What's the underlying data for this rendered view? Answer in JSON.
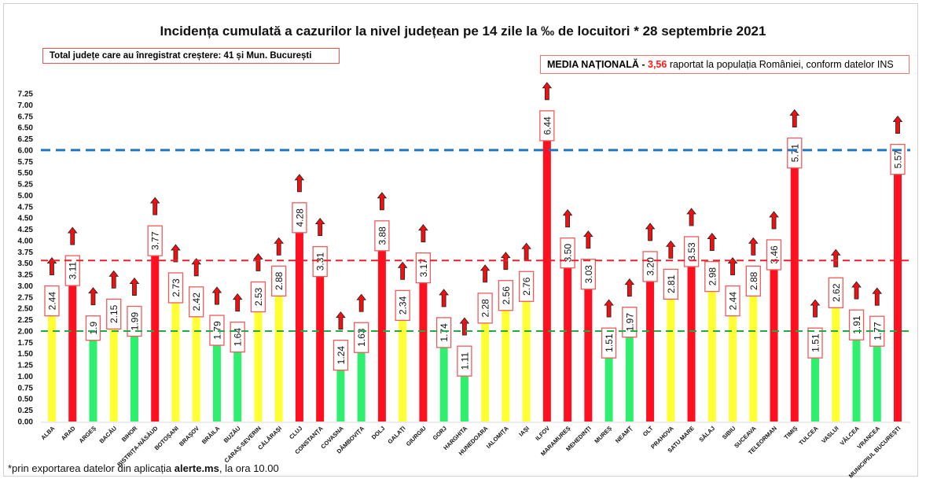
{
  "chart_data": {
    "type": "bar",
    "title": "Incidența cumulată a cazurilor la nivel județean pe 14 zile la ‰ de locuitori * 28 septembrie 2021",
    "categories": [
      "ALBA",
      "ARAD",
      "ARGEȘ",
      "BACĂU",
      "BIHOR",
      "BISTRIȚA-NĂSĂUD",
      "BOTOȘANI",
      "BRAȘOV",
      "BRĂILA",
      "BUZĂU",
      "CARAȘ-SEVERIN",
      "CĂLĂRAȘI",
      "CLUJ",
      "CONSTANȚA",
      "COVASNA",
      "DÂMBOVIȚA",
      "DOLJ",
      "GALAȚI",
      "GIURGIU",
      "GORJ",
      "HARGHITA",
      "HUNEDOARA",
      "IALOMIȚA",
      "IAȘI",
      "ILFOV",
      "MARAMUREȘ",
      "MEHEDINȚI",
      "MUREȘ",
      "NEAMȚ",
      "OLT",
      "PRAHOVA",
      "SATU MARE",
      "SĂLAJ",
      "SIBIU",
      "SUCEAVA",
      "TELEORMAN",
      "TIMIȘ",
      "TULCEA",
      "VASLUI",
      "VÂLCEA",
      "VRANCEA",
      "MUNICIPIUL BUCUREȘTI"
    ],
    "values": [
      2.44,
      3.11,
      1.9,
      2.15,
      1.99,
      3.77,
      2.73,
      2.42,
      1.79,
      1.64,
      2.53,
      2.88,
      4.28,
      3.31,
      1.24,
      1.63,
      3.88,
      2.34,
      3.17,
      1.74,
      1.11,
      2.28,
      2.56,
      2.76,
      6.44,
      3.5,
      3.03,
      1.51,
      1.97,
      3.2,
      2.81,
      3.53,
      2.98,
      2.44,
      2.88,
      3.46,
      5.71,
      1.51,
      2.62,
      1.91,
      1.77,
      5.57
    ],
    "data_labels": [
      "2.44",
      "3.11",
      "1.9",
      "2.15",
      "1.99",
      "3.77",
      "2.73",
      "2.42",
      "1.79",
      "1.64",
      "2.53",
      "2.88",
      "4.28",
      "3.31",
      "1.24",
      "1.63",
      "3.88",
      "2.34",
      "3.17",
      "1.74",
      "1.11",
      "2.28",
      "2.56",
      "2.76",
      "6.44",
      "3.50",
      "3.03",
      "1.51",
      "1.97",
      "3.20",
      "2.81",
      "3.53",
      "2.98",
      "2.44",
      "2.88",
      "3.46",
      "5.71",
      "1.51",
      "2.62",
      "1.91",
      "1.77",
      "5.57"
    ],
    "trend_arrows": "up",
    "ylim": [
      0,
      7.25
    ],
    "yticks": [
      "0.00",
      "0.25",
      "0.50",
      "0.75",
      "1.00",
      "1.25",
      "1.50",
      "1.75",
      "2.00",
      "2.25",
      "2.50",
      "2.75",
      "3.00",
      "3.25",
      "3.50",
      "3.75",
      "4.00",
      "4.25",
      "4.50",
      "4.75",
      "5.00",
      "5.25",
      "5.50",
      "5.75",
      "6.00",
      "6.25",
      "6.50",
      "6.75",
      "7.00",
      "7.25"
    ],
    "grid": false,
    "reference_lines": [
      {
        "value": 6.0,
        "color": "#1f77c4"
      },
      {
        "value": 3.56,
        "color": "#e8202a"
      },
      {
        "value": 2.0,
        "color": "#22aa44"
      }
    ],
    "colors": {
      "low": "#2ef06e",
      "mid": "#ffff33",
      "high": "#ff1020",
      "arrow": "#ee1111"
    }
  },
  "info": {
    "increase_box": "Total județe care au înregistrat creștere:  41 și Mun. București",
    "national_label": "MEDIA NAȚIONALĂ",
    "national_dash": " - ",
    "national_value": "3,56",
    "national_text": " raportat la populația României, conform datelor INS"
  },
  "footnote": {
    "prefix": "*prin exportarea datelor din aplicația ",
    "app": "alerte.ms",
    "suffix": ", la ora 10.00"
  }
}
